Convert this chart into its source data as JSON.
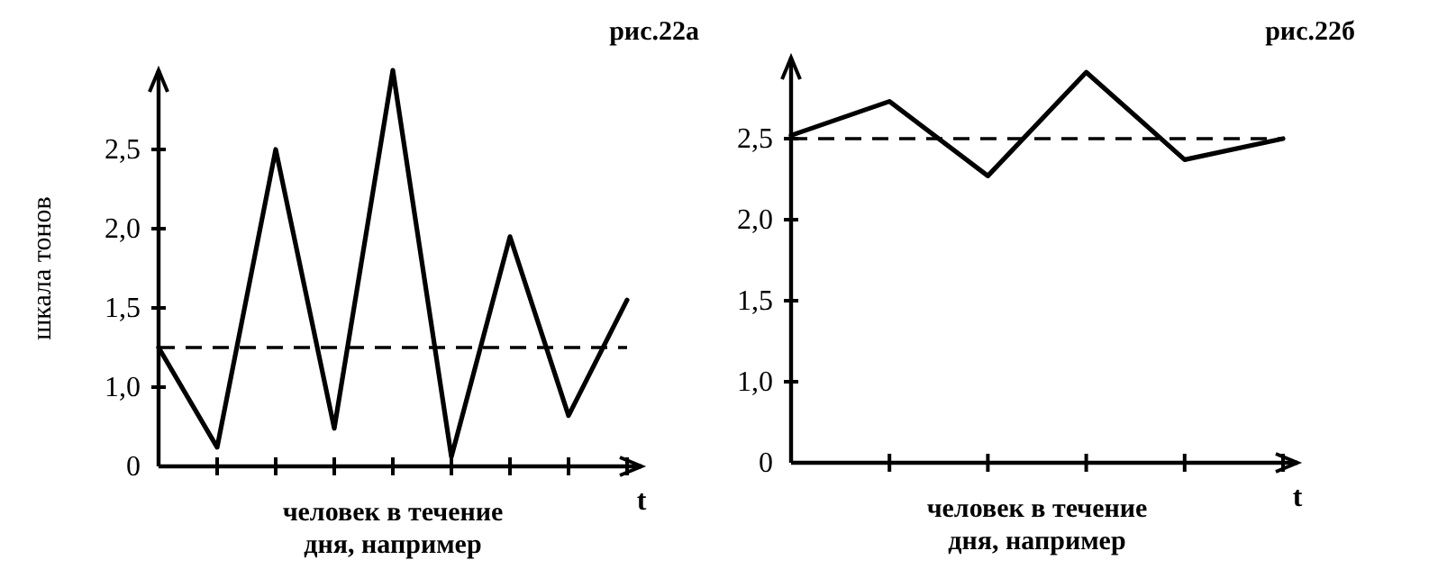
{
  "chart_data": [
    {
      "type": "line",
      "title": "рис.22а",
      "ylabel": "шкала тонов",
      "xlabel": "t",
      "annotations": [
        "человек в течение дня, например"
      ],
      "categories": [
        null,
        null,
        null,
        null,
        null,
        null,
        null,
        null,
        null
      ],
      "series": [
        {
          "color": "#000000",
          "values": [
            1.25,
            0.62,
            2.5,
            0.74,
            3.0,
            0.56,
            1.95,
            0.82,
            1.55
          ]
        }
      ],
      "ylim": [
        0.5,
        3.0
      ],
      "yticks": [
        {
          "value": 0.5,
          "label": "0"
        },
        {
          "value": 1.0,
          "label": "1,0"
        },
        {
          "value": 1.5,
          "label": "1,5"
        },
        {
          "value": 2.0,
          "label": "2,0"
        },
        {
          "value": 2.5,
          "label": "2,5"
        }
      ],
      "ref_lines": [
        {
          "axis": "y",
          "value": 1.25,
          "color": "#000000",
          "line_style": "dashed"
        }
      ],
      "grid": false,
      "marker": "none"
    },
    {
      "type": "line",
      "title": "рис.22б",
      "xlabel": "t",
      "annotations": [
        "человек в течение дня, например"
      ],
      "categories": [
        null,
        null,
        null,
        null,
        null,
        null
      ],
      "series": [
        {
          "color": "#000000",
          "values": [
            2.52,
            2.73,
            2.27,
            2.91,
            2.37,
            2.5
          ]
        }
      ],
      "ylim": [
        0.5,
        3.0
      ],
      "yticks": [
        {
          "value": 0.5,
          "label": "0"
        },
        {
          "value": 1.0,
          "label": "1,0"
        },
        {
          "value": 1.5,
          "label": "1,5"
        },
        {
          "value": 2.0,
          "label": "2,0"
        },
        {
          "value": 2.5,
          "label": "2,5"
        }
      ],
      "ref_lines": [
        {
          "axis": "y",
          "value": 2.5,
          "color": "#000000",
          "line_style": "dashed"
        }
      ],
      "grid": false,
      "marker": "none"
    }
  ]
}
